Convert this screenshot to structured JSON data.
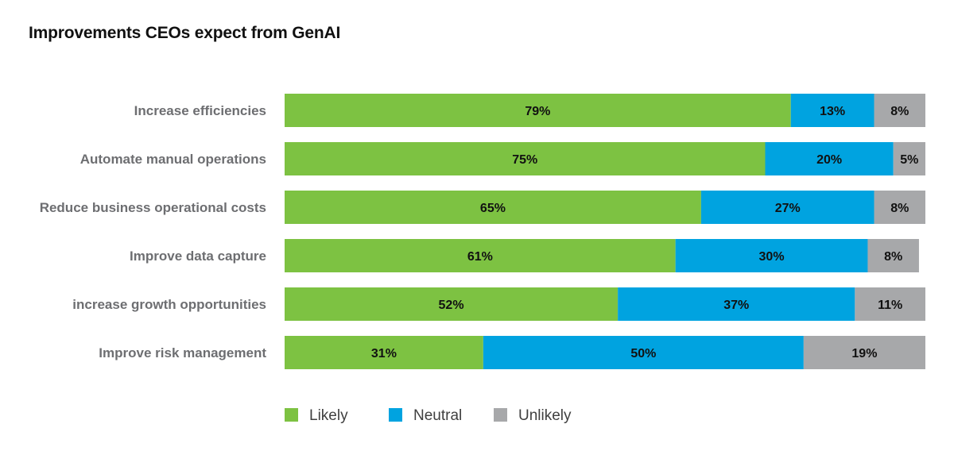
{
  "chart_data": {
    "type": "bar",
    "orientation": "horizontal",
    "stacked": true,
    "title": "Improvements CEOs expect from GenAI",
    "categories": [
      "Increase efficiencies",
      "Automate manual operations",
      "Reduce business operational costs",
      "Improve data capture",
      "increase growth opportunities",
      "Improve risk management"
    ],
    "series": [
      {
        "name": "Likely",
        "color": "#7dc242",
        "values": [
          79,
          75,
          65,
          61,
          52,
          31
        ]
      },
      {
        "name": "Neutral",
        "color": "#00a3e0",
        "values": [
          13,
          20,
          27,
          30,
          37,
          50
        ]
      },
      {
        "name": "Unlikely",
        "color": "#a7a8aa",
        "values": [
          8,
          5,
          8,
          8,
          11,
          19
        ]
      }
    ],
    "value_suffix": "%",
    "xlim": [
      0,
      100
    ],
    "grid": false,
    "legend_position": "bottom-left"
  }
}
